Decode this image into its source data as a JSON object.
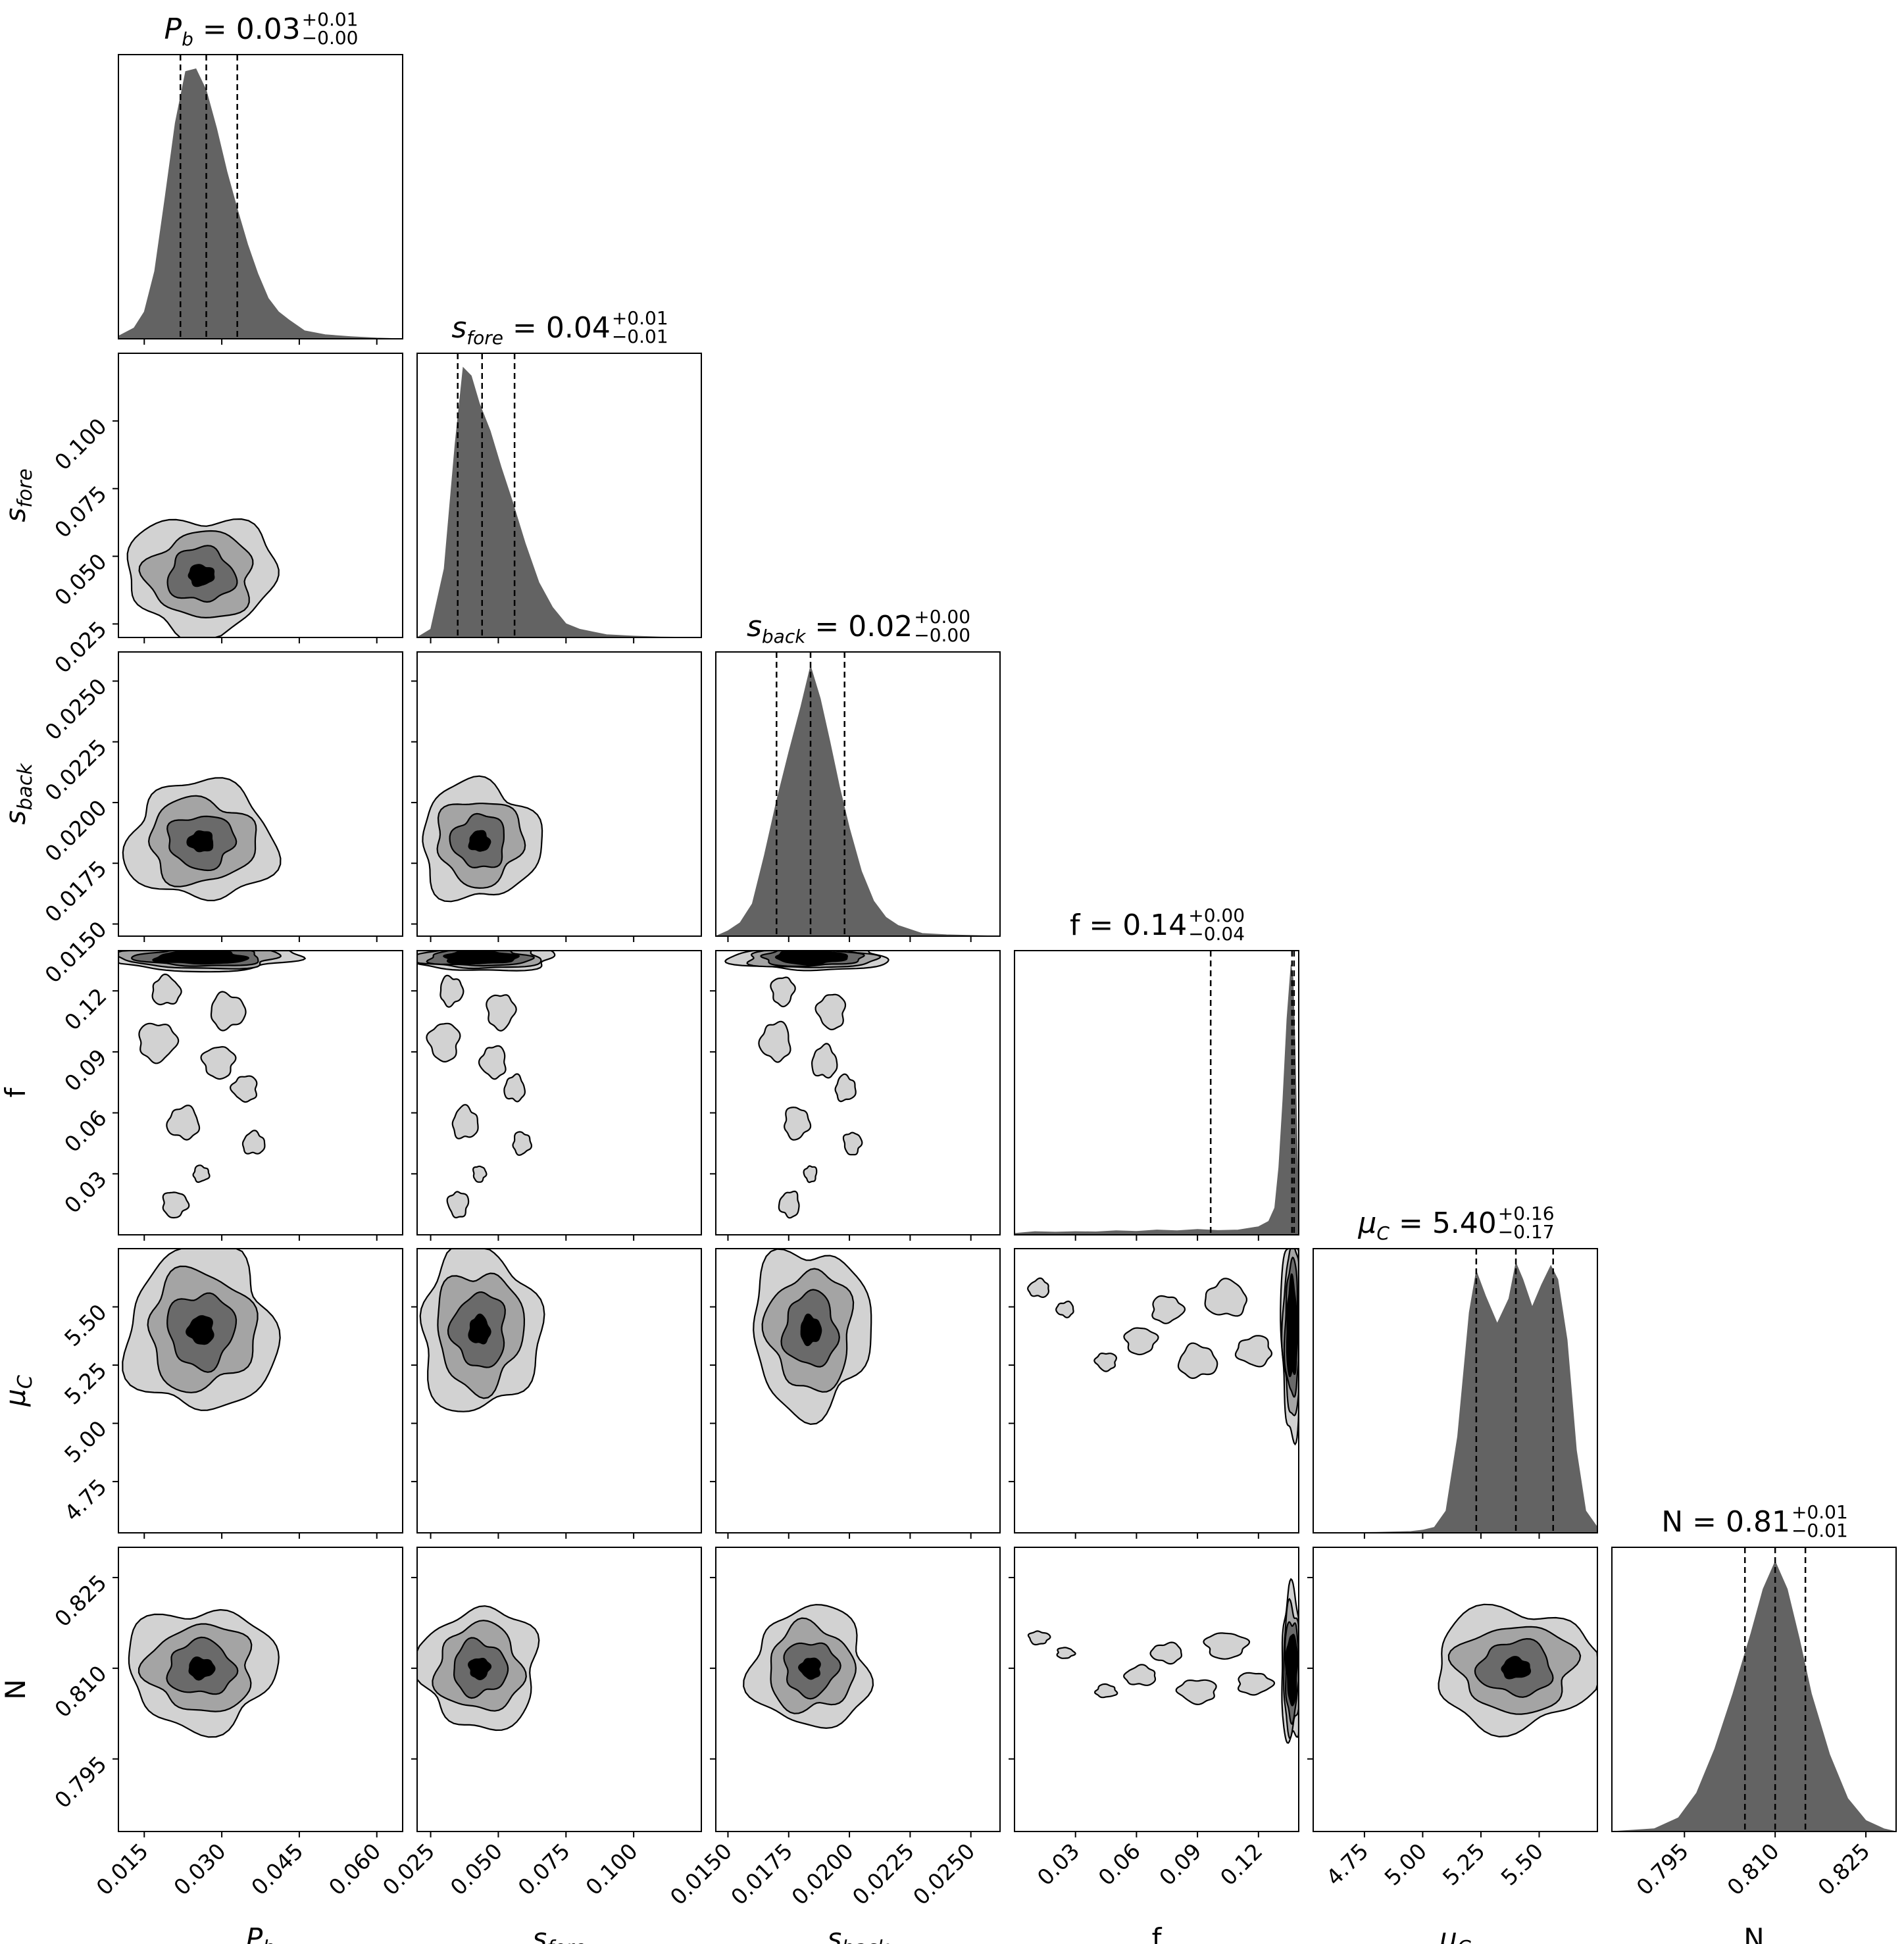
{
  "chart_data": {
    "type": "corner",
    "parameters": [
      {
        "key": "pb",
        "label_base": "P",
        "label_sub": "b",
        "label_italic": true,
        "range": [
          0.01,
          0.065
        ],
        "ticks": [
          0.015,
          0.03,
          0.045,
          0.06
        ],
        "tick_labels": [
          "0.015",
          "0.030",
          "0.045",
          "0.060"
        ],
        "median": 0.027,
        "q16": 0.022,
        "q84": 0.033,
        "title_head": "0.03",
        "title_plus": "+0.01",
        "title_minus": "−0.00"
      },
      {
        "key": "sfore",
        "label_base": "s",
        "label_sub": "fore",
        "label_italic": true,
        "range": [
          0.02,
          0.125
        ],
        "ticks": [
          0.025,
          0.05,
          0.075,
          0.1
        ],
        "tick_labels": [
          "0.025",
          "0.050",
          "0.075",
          "0.100"
        ],
        "median": 0.044,
        "q16": 0.035,
        "q84": 0.056,
        "title_head": "0.04",
        "title_plus": "+0.01",
        "title_minus": "−0.01"
      },
      {
        "key": "sback",
        "label_base": "s",
        "label_sub": "back",
        "label_italic": true,
        "range": [
          0.0145,
          0.0262
        ],
        "ticks": [
          0.015,
          0.0175,
          0.02,
          0.0225,
          0.025
        ],
        "tick_labels": [
          "0.0150",
          "0.0175",
          "0.0200",
          "0.0225",
          "0.0250"
        ],
        "median": 0.0184,
        "q16": 0.017,
        "q84": 0.0198,
        "title_head": "0.02",
        "title_plus": "+0.00",
        "title_minus": "−0.00"
      },
      {
        "key": "f",
        "label_base": "f",
        "label_sub": "",
        "label_italic": false,
        "range": [
          0.0,
          0.1398
        ],
        "ticks": [
          0.03,
          0.06,
          0.09,
          0.12
        ],
        "tick_labels": [
          "0.03",
          "0.06",
          "0.09",
          "0.12"
        ],
        "median": 0.1365,
        "q16": 0.0965,
        "q84": 0.1375,
        "title_head": "0.14",
        "title_plus": "+0.00",
        "title_minus": "−0.04"
      },
      {
        "key": "muC",
        "label_base": "μ",
        "label_sub": "C",
        "label_italic": true,
        "range": [
          4.53,
          5.75
        ],
        "ticks": [
          4.75,
          5.0,
          5.25,
          5.5
        ],
        "tick_labels": [
          "4.75",
          "5.00",
          "5.25",
          "5.50"
        ],
        "median": 5.4,
        "q16": 5.23,
        "q84": 5.56,
        "title_head": "5.40",
        "title_plus": "+0.16",
        "title_minus": "−0.17"
      },
      {
        "key": "N",
        "label_base": "N",
        "label_sub": "",
        "label_italic": false,
        "range": [
          0.783,
          0.83
        ],
        "ticks": [
          0.795,
          0.81,
          0.825
        ],
        "tick_labels": [
          "0.795",
          "0.810",
          "0.825"
        ],
        "median": 0.81,
        "q16": 0.805,
        "q84": 0.815,
        "title_head": "0.81",
        "title_plus": "+0.01",
        "title_minus": "−0.01"
      }
    ],
    "histograms": [
      {
        "param": "pb",
        "x": [
          0.01,
          0.013,
          0.015,
          0.017,
          0.019,
          0.021,
          0.023,
          0.025,
          0.027,
          0.029,
          0.031,
          0.033,
          0.035,
          0.037,
          0.039,
          0.041,
          0.043,
          0.046,
          0.05,
          0.055,
          0.06,
          0.065
        ],
        "y": [
          0.01,
          0.04,
          0.1,
          0.25,
          0.52,
          0.8,
          0.99,
          1.0,
          0.92,
          0.78,
          0.62,
          0.48,
          0.35,
          0.24,
          0.15,
          0.1,
          0.07,
          0.03,
          0.015,
          0.008,
          0.003,
          0.0
        ]
      },
      {
        "param": "sfore",
        "x": [
          0.02,
          0.025,
          0.03,
          0.034,
          0.037,
          0.04,
          0.043,
          0.047,
          0.051,
          0.055,
          0.06,
          0.065,
          0.07,
          0.075,
          0.08,
          0.085,
          0.09,
          0.1,
          0.11,
          0.125
        ],
        "y": [
          0.0,
          0.03,
          0.25,
          0.7,
          0.98,
          0.95,
          0.85,
          0.75,
          0.62,
          0.5,
          0.34,
          0.2,
          0.11,
          0.05,
          0.03,
          0.02,
          0.01,
          0.005,
          0.002,
          0.0
        ]
      },
      {
        "param": "sback",
        "x": [
          0.0145,
          0.015,
          0.0155,
          0.016,
          0.0165,
          0.017,
          0.0175,
          0.018,
          0.0184,
          0.0188,
          0.0192,
          0.0196,
          0.02,
          0.0205,
          0.021,
          0.0215,
          0.022,
          0.023,
          0.024,
          0.0262
        ],
        "y": [
          0.0,
          0.02,
          0.05,
          0.12,
          0.3,
          0.5,
          0.68,
          0.85,
          1.0,
          0.88,
          0.72,
          0.55,
          0.4,
          0.24,
          0.13,
          0.07,
          0.04,
          0.01,
          0.005,
          0.0
        ]
      },
      {
        "param": "f",
        "x": [
          0.0,
          0.01,
          0.02,
          0.03,
          0.04,
          0.05,
          0.06,
          0.07,
          0.08,
          0.09,
          0.1,
          0.11,
          0.12,
          0.125,
          0.128,
          0.13,
          0.132,
          0.134,
          0.136,
          0.137,
          0.138,
          0.139,
          0.1398
        ],
        "y": [
          0.005,
          0.012,
          0.01,
          0.012,
          0.011,
          0.015,
          0.013,
          0.018,
          0.015,
          0.02,
          0.016,
          0.018,
          0.03,
          0.05,
          0.1,
          0.25,
          0.5,
          0.8,
          1.0,
          0.95,
          0.7,
          0.35,
          0.1
        ]
      },
      {
        "param": "muC",
        "x": [
          4.53,
          4.8,
          4.95,
          5.0,
          5.05,
          5.1,
          5.15,
          5.2,
          5.23,
          5.27,
          5.32,
          5.37,
          5.4,
          5.43,
          5.47,
          5.51,
          5.55,
          5.58,
          5.62,
          5.66,
          5.7,
          5.75
        ],
        "y": [
          0.0,
          0.002,
          0.005,
          0.01,
          0.02,
          0.08,
          0.35,
          0.8,
          0.95,
          0.86,
          0.76,
          0.85,
          0.98,
          0.92,
          0.82,
          0.9,
          0.97,
          0.92,
          0.7,
          0.3,
          0.08,
          0.02
        ]
      },
      {
        "param": "N",
        "x": [
          0.783,
          0.79,
          0.794,
          0.797,
          0.8,
          0.803,
          0.806,
          0.808,
          0.81,
          0.812,
          0.814,
          0.816,
          0.819,
          0.822,
          0.825,
          0.828,
          0.83
        ],
        "y": [
          0.0,
          0.01,
          0.05,
          0.14,
          0.3,
          0.5,
          0.72,
          0.88,
          0.98,
          0.88,
          0.7,
          0.5,
          0.28,
          0.12,
          0.04,
          0.01,
          0.0
        ]
      }
    ],
    "contour_levels": [
      "outer",
      "second",
      "third",
      "core"
    ],
    "marginal_panels": [
      "pb",
      "sfore",
      "sback",
      "f",
      "muC",
      "N"
    ]
  }
}
